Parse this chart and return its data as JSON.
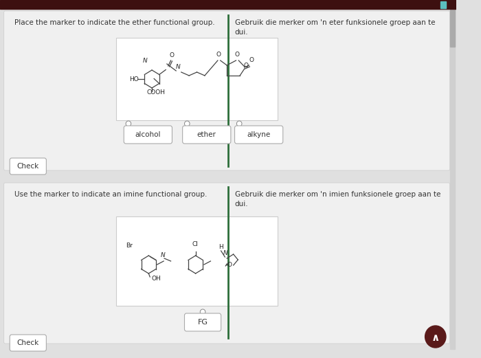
{
  "bg_color": "#e0e0e0",
  "top_bar_color": "#3d1010",
  "divider_color": "#2d6e3a",
  "panel1_bg": "#f0f0f0",
  "panel2_bg": "#f0f0f0",
  "text_color": "#333333",
  "panel1_instruction_en": "Place the marker to indicate the ether functional group.",
  "panel1_instruction_af": "Gebruik die merker om 'n eter funksionele groep aan te\ndui.",
  "panel2_instruction_en": "Use the marker to indicate an imine functional group.",
  "panel2_instruction_af": "Gebruik die merker om 'n imien funksionele groep aan te\ndui.",
  "button_labels": [
    "alcohol",
    "ether",
    "alkyne"
  ],
  "button2_label": "FG",
  "mol_box_color": "#ffffff",
  "mol_box_border": "#cccccc",
  "small_circle_color": "#888888",
  "nav_button_color": "#5a1a1a",
  "bond_color": "#444444",
  "label_color": "#222222"
}
